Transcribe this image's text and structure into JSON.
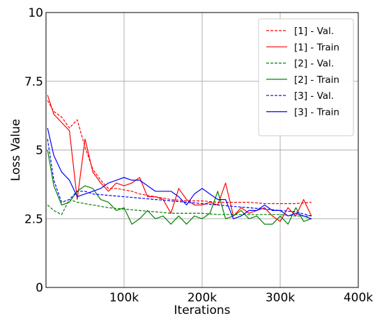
{
  "chart_data": {
    "type": "line",
    "title": "",
    "xlabel": "Iterations",
    "ylabel": "Loss Value",
    "xlim": [
      0,
      400000
    ],
    "ylim": [
      0,
      10
    ],
    "xticks": [
      {
        "value": 100000,
        "label": "100k"
      },
      {
        "value": 200000,
        "label": "200k"
      },
      {
        "value": 300000,
        "label": "300k"
      },
      {
        "value": 400000,
        "label": "400k"
      }
    ],
    "yticks": [
      {
        "value": 0,
        "label": "0"
      },
      {
        "value": 2.5,
        "label": "2.5"
      },
      {
        "value": 5,
        "label": "5"
      },
      {
        "value": 7.5,
        "label": "7.5"
      },
      {
        "value": 10,
        "label": "10"
      }
    ],
    "grid": true,
    "legend_position": "top-right",
    "series": [
      {
        "name": "[1] - Val.",
        "color": "#ff0000",
        "dash": true,
        "x": [
          2000,
          10000,
          20000,
          30000,
          40000,
          50000,
          60000,
          70000,
          80000,
          90000,
          100000,
          110000,
          120000,
          140000,
          160000,
          180000,
          200000,
          220000,
          240000,
          260000,
          280000,
          300000,
          320000,
          340000
        ],
        "y": [
          6.8,
          6.4,
          6.2,
          5.8,
          6.1,
          5.1,
          4.3,
          3.9,
          3.6,
          3.6,
          3.55,
          3.5,
          3.4,
          3.3,
          3.2,
          3.15,
          3.15,
          3.1,
          3.1,
          3.1,
          3.05,
          3.05,
          3.05,
          3.1
        ]
      },
      {
        "name": "[1] - Train",
        "color": "#ff0000",
        "dash": false,
        "x": [
          2000,
          10000,
          20000,
          30000,
          40000,
          50000,
          60000,
          70000,
          80000,
          90000,
          100000,
          110000,
          120000,
          130000,
          140000,
          150000,
          160000,
          170000,
          180000,
          190000,
          200000,
          210000,
          220000,
          230000,
          240000,
          250000,
          260000,
          270000,
          280000,
          290000,
          300000,
          310000,
          320000,
          330000,
          340000
        ],
        "y": [
          7.0,
          6.3,
          6.0,
          5.7,
          3.2,
          5.4,
          4.2,
          3.8,
          3.5,
          3.8,
          3.7,
          3.8,
          4.0,
          3.3,
          3.3,
          3.2,
          2.7,
          3.6,
          3.2,
          3.0,
          3.0,
          3.1,
          3.0,
          3.8,
          2.6,
          2.9,
          2.7,
          2.8,
          2.9,
          2.6,
          2.4,
          2.9,
          2.6,
          3.2,
          2.6
        ]
      },
      {
        "name": "[2] - Val.",
        "color": "#008000",
        "dash": true,
        "x": [
          2000,
          10000,
          20000,
          30000,
          40000,
          60000,
          80000,
          100000,
          120000,
          140000,
          160000,
          180000,
          200000,
          220000,
          240000,
          260000,
          280000,
          300000,
          320000,
          340000
        ],
        "y": [
          3.0,
          2.8,
          2.65,
          3.2,
          3.1,
          3.0,
          2.9,
          2.85,
          2.8,
          2.75,
          2.7,
          2.7,
          2.7,
          2.65,
          2.65,
          2.65,
          2.65,
          2.65,
          2.6,
          2.6
        ]
      },
      {
        "name": "[2] - Train",
        "color": "#008000",
        "dash": false,
        "x": [
          2000,
          10000,
          20000,
          30000,
          40000,
          50000,
          60000,
          70000,
          80000,
          90000,
          100000,
          110000,
          120000,
          130000,
          140000,
          150000,
          160000,
          170000,
          180000,
          190000,
          200000,
          210000,
          220000,
          230000,
          240000,
          250000,
          260000,
          270000,
          280000,
          290000,
          300000,
          310000,
          320000,
          330000,
          340000
        ],
        "y": [
          5.0,
          3.7,
          3.0,
          3.1,
          3.5,
          3.7,
          3.6,
          3.2,
          3.1,
          2.8,
          2.9,
          2.3,
          2.5,
          2.8,
          2.5,
          2.6,
          2.3,
          2.6,
          2.3,
          2.6,
          2.5,
          2.7,
          3.5,
          2.5,
          2.6,
          2.8,
          2.5,
          2.6,
          2.3,
          2.3,
          2.6,
          2.3,
          2.9,
          2.4,
          2.5
        ]
      },
      {
        "name": "[3] - Val.",
        "color": "#0000ff",
        "dash": true,
        "x": [
          2000,
          10000,
          20000,
          30000,
          40000,
          50000,
          60000,
          80000,
          100000,
          120000,
          140000,
          160000,
          180000,
          200000,
          220000,
          240000,
          260000,
          280000,
          300000,
          320000,
          340000
        ],
        "y": [
          5.4,
          3.9,
          3.1,
          3.2,
          3.5,
          3.5,
          3.4,
          3.35,
          3.3,
          3.25,
          3.2,
          3.15,
          3.1,
          3.05,
          3.0,
          2.95,
          2.9,
          2.85,
          2.8,
          2.75,
          2.6
        ]
      },
      {
        "name": "[3] - Train",
        "color": "#0000ff",
        "dash": false,
        "x": [
          2000,
          10000,
          20000,
          30000,
          40000,
          50000,
          60000,
          70000,
          80000,
          90000,
          100000,
          110000,
          120000,
          130000,
          140000,
          150000,
          160000,
          170000,
          180000,
          190000,
          200000,
          210000,
          220000,
          230000,
          240000,
          250000,
          260000,
          270000,
          280000,
          290000,
          300000,
          310000,
          320000,
          330000,
          340000
        ],
        "y": [
          5.8,
          4.8,
          4.2,
          3.9,
          3.3,
          3.4,
          3.5,
          3.6,
          3.8,
          3.9,
          4.0,
          3.9,
          3.9,
          3.7,
          3.5,
          3.5,
          3.5,
          3.3,
          3.0,
          3.4,
          3.6,
          3.4,
          3.2,
          3.2,
          2.5,
          2.6,
          2.8,
          2.8,
          3.0,
          2.8,
          2.8,
          2.6,
          2.7,
          2.6,
          2.5
        ]
      }
    ]
  }
}
